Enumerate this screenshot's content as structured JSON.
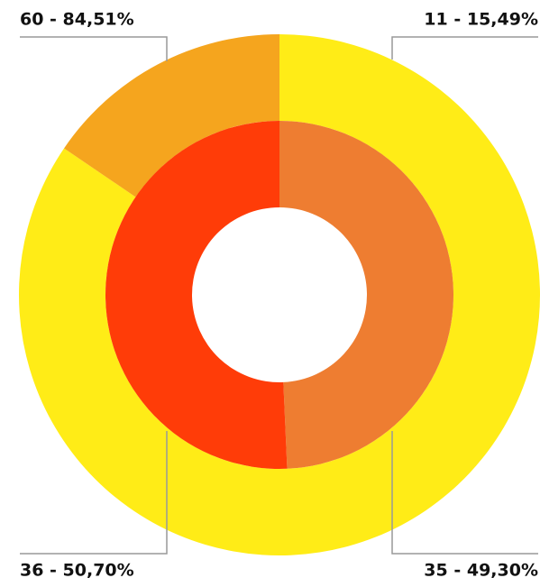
{
  "chart_data": {
    "type": "donut",
    "series": [
      {
        "values": [
          60,
          11
        ],
        "value_labels": [
          "60 - 84,51%",
          "11 - 15,49%"
        ],
        "colors": [
          "#FFEC17",
          "#F5A51E"
        ]
      },
      {
        "values": [
          35,
          36
        ],
        "value_labels": [
          "35 - 49,30%",
          "36 - 50,70%"
        ],
        "colors": [
          "#EE7D31",
          "#FF3C08"
        ]
      }
    ]
  }
}
